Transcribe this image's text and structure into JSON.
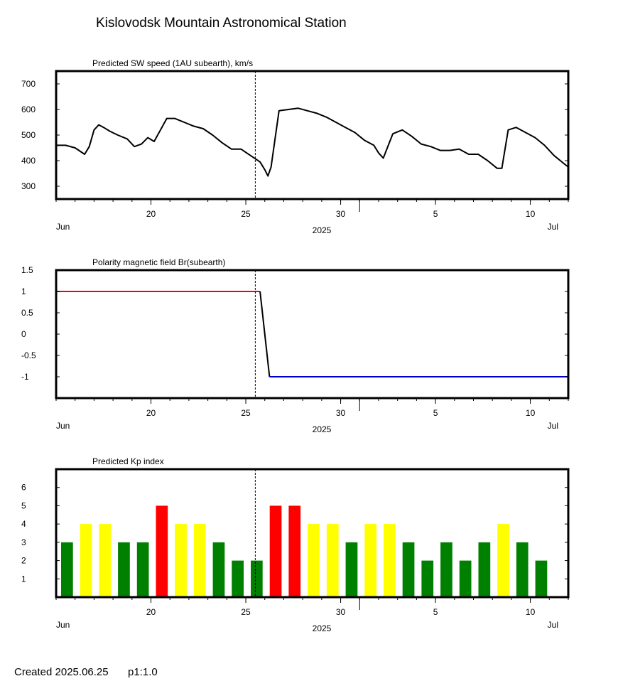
{
  "header": {
    "title": "Kislovodsk Mountain Astronomical Station",
    "footer_created": "Created  2025.06.25",
    "footer_p": "p1:1.0"
  },
  "colors": {
    "red": "#ff0000",
    "yellow": "#ffff00",
    "green": "#008000",
    "blue": "#0000cc",
    "axis": "#000000"
  },
  "chart_data": [
    {
      "type": "line",
      "title": "Predicted SW speed (1AU subearth), km/s",
      "x_axis": {
        "unit": "day",
        "range": [
          "2025-06-15",
          "2025-07-12"
        ],
        "tick_labels": [
          "20",
          "25",
          "30",
          "5",
          "10"
        ],
        "tick_dates": [
          "2025-06-20",
          "2025-06-25",
          "2025-06-30",
          "2025-07-05",
          "2025-07-10"
        ],
        "month_labels": [
          "Jun",
          "Jul"
        ],
        "year_label": "2025"
      },
      "y_axis": {
        "range": [
          250,
          750
        ],
        "tick_labels": [
          "700",
          "600",
          "500",
          "400",
          "300"
        ],
        "ticks": [
          700,
          600,
          500,
          400,
          300
        ]
      },
      "now_marker": "2025-06-25T12:00",
      "series": [
        {
          "x": [
            "2025-06-15T00:00",
            "2025-06-15T12:00",
            "2025-06-16T00:00",
            "2025-06-16T12:00",
            "2025-06-16T18:00",
            "2025-06-17T00:00",
            "2025-06-17T06:00",
            "2025-06-17T12:00",
            "2025-06-17T20:00",
            "2025-06-18T06:00",
            "2025-06-18T18:00",
            "2025-06-19T03:00",
            "2025-06-19T12:00",
            "2025-06-19T20:00",
            "2025-06-20T04:00",
            "2025-06-20T12:00",
            "2025-06-20T20:00",
            "2025-06-21T06:00",
            "2025-06-21T18:00",
            "2025-06-22T06:00",
            "2025-06-22T18:00",
            "2025-06-23T06:00",
            "2025-06-23T18:00",
            "2025-06-24T06:00",
            "2025-06-24T18:00",
            "2025-06-25T06:00",
            "2025-06-25T18:00",
            "2025-06-26T00:00",
            "2025-06-26T04:00",
            "2025-06-26T08:00",
            "2025-06-26T18:00",
            "2025-06-27T06:00",
            "2025-06-27T18:00",
            "2025-06-28T06:00",
            "2025-06-28T18:00",
            "2025-06-29T06:00",
            "2025-06-29T18:00",
            "2025-06-30T06:00",
            "2025-06-30T18:00",
            "2025-07-01T06:00",
            "2025-07-01T18:00",
            "2025-07-02T00:00",
            "2025-07-02T06:00",
            "2025-07-02T18:00",
            "2025-07-03T06:00",
            "2025-07-03T18:00",
            "2025-07-04T06:00",
            "2025-07-04T18:00",
            "2025-07-05T06:00",
            "2025-07-05T18:00",
            "2025-07-06T06:00",
            "2025-07-06T18:00",
            "2025-07-07T06:00",
            "2025-07-07T18:00",
            "2025-07-08T06:00",
            "2025-07-08T12:00",
            "2025-07-08T20:00",
            "2025-07-09T06:00",
            "2025-07-09T18:00",
            "2025-07-10T06:00",
            "2025-07-10T18:00",
            "2025-07-11T06:00",
            "2025-07-11T18:00",
            "2025-07-12T00:00"
          ],
          "values": [
            460,
            460,
            450,
            425,
            455,
            520,
            540,
            530,
            515,
            500,
            485,
            455,
            465,
            490,
            475,
            520,
            565,
            565,
            550,
            535,
            525,
            500,
            470,
            445,
            445,
            420,
            395,
            365,
            340,
            375,
            595,
            600,
            605,
            595,
            585,
            570,
            550,
            530,
            510,
            480,
            460,
            430,
            410,
            505,
            520,
            495,
            465,
            455,
            440,
            440,
            445,
            425,
            425,
            400,
            370,
            370,
            520,
            530,
            510,
            490,
            460,
            420,
            390,
            375
          ],
          "color": "#000000"
        }
      ]
    },
    {
      "type": "line",
      "title": "Polarity magnetic field  Br(subearth)",
      "x_axis": {
        "unit": "day",
        "range": [
          "2025-06-15",
          "2025-07-12"
        ],
        "tick_labels": [
          "20",
          "25",
          "30",
          "5",
          "10"
        ],
        "tick_dates": [
          "2025-06-20",
          "2025-06-25",
          "2025-06-30",
          "2025-07-05",
          "2025-07-10"
        ],
        "month_labels": [
          "Jun",
          "Jul"
        ],
        "year_label": "2025"
      },
      "y_axis": {
        "range": [
          -1.5,
          1.5
        ],
        "tick_labels": [
          "1.5",
          "1",
          "0.5",
          "0",
          "-0.5",
          "-1"
        ],
        "ticks": [
          1.5,
          1,
          0.5,
          0,
          -0.5,
          -1
        ]
      },
      "now_marker": "2025-06-25T12:00",
      "series": [
        {
          "x": [
            "2025-06-15T00:00",
            "2025-06-25T18:00"
          ],
          "values": [
            1,
            1
          ],
          "color": "#ff0000"
        },
        {
          "x": [
            "2025-06-25T18:00",
            "2025-06-26T06:00"
          ],
          "values": [
            1,
            -1
          ],
          "color": "#000000"
        },
        {
          "x": [
            "2025-06-26T06:00",
            "2025-07-12T00:00"
          ],
          "values": [
            -1,
            -1
          ],
          "color": "#0000cc"
        }
      ]
    },
    {
      "type": "bar",
      "title": "Predicted Kp index",
      "x_axis": {
        "unit": "day",
        "range": [
          "2025-06-15",
          "2025-07-12"
        ],
        "tick_labels": [
          "20",
          "25",
          "30",
          "5",
          "10"
        ],
        "tick_dates": [
          "2025-06-20",
          "2025-06-25",
          "2025-06-30",
          "2025-07-05",
          "2025-07-10"
        ],
        "month_labels": [
          "Jun",
          "Jul"
        ],
        "year_label": "2025"
      },
      "y_axis": {
        "range": [
          0,
          7
        ],
        "tick_labels": [
          "6",
          "5",
          "4",
          "3",
          "2",
          "1"
        ],
        "ticks": [
          6,
          5,
          4,
          3,
          2,
          1
        ]
      },
      "now_marker": "2025-06-25T12:00",
      "categories": [
        "2025-06-15",
        "2025-06-16",
        "2025-06-17",
        "2025-06-18",
        "2025-06-19",
        "2025-06-20",
        "2025-06-21",
        "2025-06-22",
        "2025-06-23",
        "2025-06-24",
        "2025-06-25",
        "2025-06-26",
        "2025-06-27",
        "2025-06-28",
        "2025-06-29",
        "2025-06-30",
        "2025-07-01",
        "2025-07-02",
        "2025-07-03",
        "2025-07-04",
        "2025-07-05",
        "2025-07-06",
        "2025-07-07",
        "2025-07-08",
        "2025-07-09",
        "2025-07-10",
        "2025-07-11"
      ],
      "values": [
        3,
        4,
        4,
        3,
        3,
        5,
        4,
        4,
        3,
        2,
        2,
        5,
        5,
        4,
        4,
        3,
        4,
        4,
        3,
        2,
        3,
        2,
        3,
        4,
        3,
        2,
        null
      ],
      "bar_colors": [
        "green",
        "yellow",
        "yellow",
        "green",
        "green",
        "red",
        "yellow",
        "yellow",
        "green",
        "green",
        "green",
        "red",
        "red",
        "yellow",
        "yellow",
        "green",
        "yellow",
        "yellow",
        "green",
        "green",
        "green",
        "green",
        "green",
        "yellow",
        "green",
        "green",
        null
      ]
    }
  ]
}
